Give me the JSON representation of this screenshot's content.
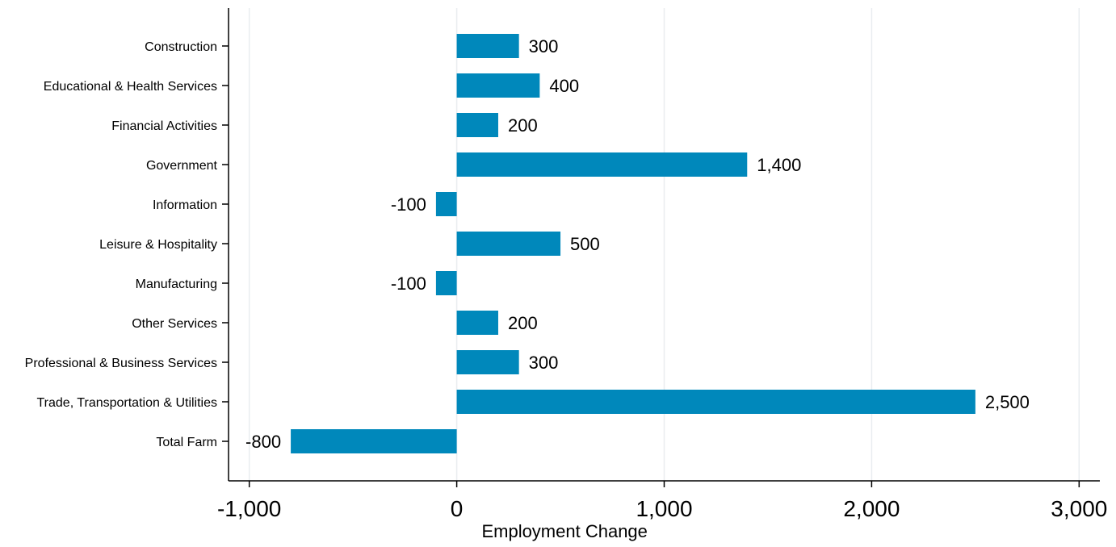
{
  "chart_data": {
    "type": "bar",
    "orientation": "horizontal",
    "categories": [
      "Construction",
      "Educational & Health Services",
      "Financial Activities",
      "Government",
      "Information",
      "Leisure & Hospitality",
      "Manufacturing",
      "Other Services",
      "Professional & Business Services",
      "Trade, Transportation & Utilities",
      "Total Farm"
    ],
    "values": [
      300,
      400,
      200,
      1400,
      -100,
      500,
      -100,
      200,
      300,
      2500,
      -800
    ],
    "value_labels": [
      "300",
      "400",
      "200",
      "1,400",
      "-100",
      "500",
      "-100",
      "200",
      "300",
      "2,500",
      "-800"
    ],
    "title": "",
    "xlabel": "Employment Change",
    "ylabel": "",
    "xlim": [
      -1100,
      3100
    ],
    "xticks": [
      -1000,
      0,
      1000,
      2000,
      3000
    ],
    "xtick_labels": [
      "-1,000",
      "0",
      "1,000",
      "2,000",
      "3,000"
    ],
    "grid": "vertical",
    "legend": "none",
    "bar_color": "#0088BB",
    "grid_color": "#E9EDF0",
    "axis_color": "#000000",
    "text_color": "#000000"
  }
}
